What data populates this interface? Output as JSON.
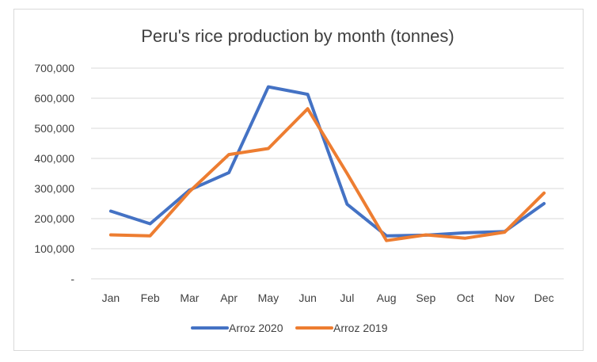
{
  "chart_data": {
    "type": "line",
    "title": "Peru's rice production by month (tonnes)",
    "xlabel": "",
    "ylabel": "",
    "categories": [
      "Jan",
      "Feb",
      "Mar",
      "Apr",
      "May",
      "Jun",
      "Jul",
      "Aug",
      "Sep",
      "Oct",
      "Nov",
      "Dec"
    ],
    "ylim": [
      0,
      700000
    ],
    "yticks": [
      0,
      100000,
      200000,
      300000,
      400000,
      500000,
      600000,
      700000
    ],
    "ytick_labels": [
      "-",
      "100,000",
      "200,000",
      "300,000",
      "400,000",
      "500,000",
      "600,000",
      "700,000"
    ],
    "grid": true,
    "legend_position": "bottom",
    "series": [
      {
        "name": "Arroz 2020",
        "color": "#4472c4",
        "values": [
          225000,
          183000,
          295000,
          353000,
          638000,
          613000,
          248000,
          143000,
          145000,
          153000,
          157000,
          250000
        ]
      },
      {
        "name": "Arroz 2019",
        "color": "#ed7d31",
        "values": [
          146000,
          143000,
          290000,
          413000,
          433000,
          565000,
          350000,
          127000,
          146000,
          135000,
          155000,
          285000
        ]
      }
    ]
  }
}
